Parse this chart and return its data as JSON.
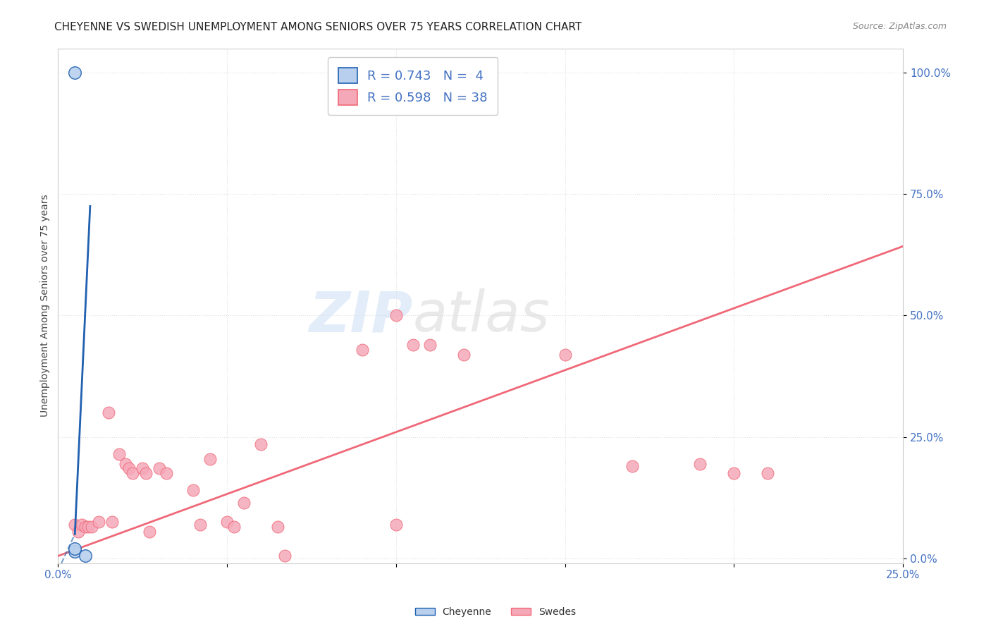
{
  "title": "CHEYENNE VS SWEDISH UNEMPLOYMENT AMONG SENIORS OVER 75 YEARS CORRELATION CHART",
  "source": "Source: ZipAtlas.com",
  "ylabel": "Unemployment Among Seniors over 75 years",
  "xlim": [
    0.0,
    0.25
  ],
  "ylim": [
    -0.01,
    1.05
  ],
  "yticks": [
    0.0,
    0.25,
    0.5,
    0.75,
    1.0
  ],
  "ytick_labels": [
    "0.0%",
    "25.0%",
    "50.0%",
    "75.0%",
    "100.0%"
  ],
  "xticks": [
    0.0,
    0.05,
    0.1,
    0.15,
    0.2,
    0.25
  ],
  "xtick_labels": [
    "0.0%",
    "",
    "",
    "",
    "",
    "25.0%"
  ],
  "cheyenne_R": 0.743,
  "cheyenne_N": 4,
  "swedes_R": 0.598,
  "swedes_N": 38,
  "cheyenne_color": "#b8d0ed",
  "swedes_color": "#f5a8b8",
  "cheyenne_line_color": "#2060b0",
  "swedes_line_color": "#f06878",
  "background_color": "#ffffff",
  "grid_color": "#e0e0e0",
  "cheyenne_points": [
    [
      0.005,
      0.015
    ],
    [
      0.005,
      0.02
    ],
    [
      0.008,
      0.005
    ],
    [
      0.005,
      1.0
    ]
  ],
  "swedes_points": [
    [
      0.005,
      0.07
    ],
    [
      0.006,
      0.055
    ],
    [
      0.007,
      0.07
    ],
    [
      0.008,
      0.065
    ],
    [
      0.009,
      0.065
    ],
    [
      0.01,
      0.065
    ],
    [
      0.012,
      0.075
    ],
    [
      0.015,
      0.3
    ],
    [
      0.016,
      0.075
    ],
    [
      0.018,
      0.215
    ],
    [
      0.02,
      0.195
    ],
    [
      0.021,
      0.185
    ],
    [
      0.022,
      0.175
    ],
    [
      0.025,
      0.185
    ],
    [
      0.026,
      0.175
    ],
    [
      0.027,
      0.055
    ],
    [
      0.03,
      0.185
    ],
    [
      0.032,
      0.175
    ],
    [
      0.04,
      0.14
    ],
    [
      0.042,
      0.07
    ],
    [
      0.045,
      0.205
    ],
    [
      0.05,
      0.075
    ],
    [
      0.052,
      0.065
    ],
    [
      0.055,
      0.115
    ],
    [
      0.06,
      0.235
    ],
    [
      0.065,
      0.065
    ],
    [
      0.067,
      0.005
    ],
    [
      0.09,
      0.43
    ],
    [
      0.1,
      0.07
    ],
    [
      0.1,
      0.5
    ],
    [
      0.105,
      0.44
    ],
    [
      0.11,
      0.44
    ],
    [
      0.12,
      0.42
    ],
    [
      0.15,
      0.42
    ],
    [
      0.17,
      0.19
    ],
    [
      0.19,
      0.195
    ],
    [
      0.2,
      0.175
    ],
    [
      0.21,
      0.175
    ]
  ],
  "cheyenne_line_solid_x1": 0.005,
  "cheyenne_line_solid_x2": 0.0095,
  "cheyenne_line_dashed_x1": 0.001,
  "cheyenne_line_dashed_x2": 0.005,
  "cheyenne_slope": 150.0,
  "cheyenne_intercept": -0.7,
  "swedes_slope": 2.55,
  "swedes_intercept": 0.005,
  "title_fontsize": 11,
  "legend_fontsize": 13,
  "right_tick_color": "#4472c4",
  "bottom_tick_color": "#4472c4"
}
